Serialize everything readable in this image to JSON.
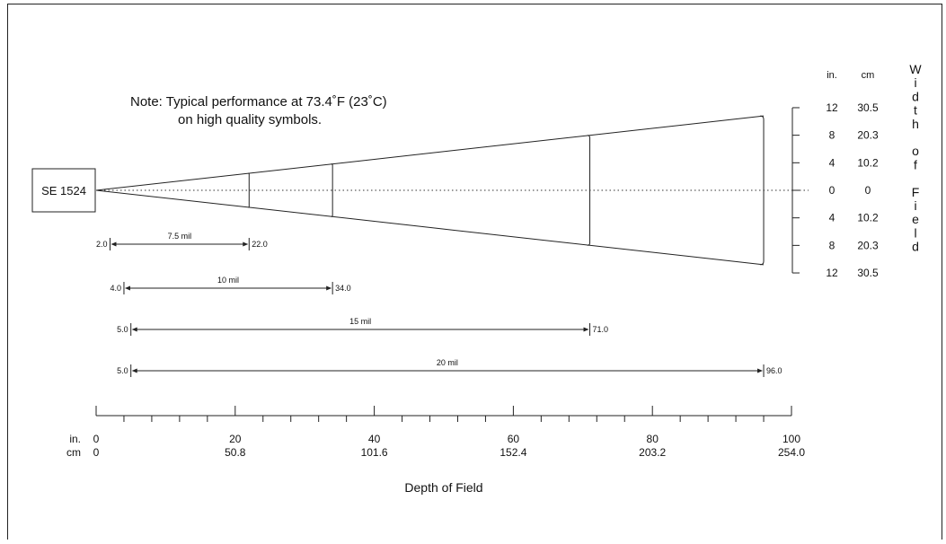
{
  "note": {
    "line1": "Note:  Typical performance at 73.4˚F (23˚C)",
    "line2": "on high quality symbols."
  },
  "scanner": {
    "label": "SE 1524"
  },
  "depth_axis": {
    "title": "Depth of Field",
    "unit_in": "in.",
    "unit_cm": "cm",
    "ticks": [
      {
        "in": "0",
        "cm": "0",
        "value": 0
      },
      {
        "in": "20",
        "cm": "50.8",
        "value": 20
      },
      {
        "in": "40",
        "cm": "101.6",
        "value": 40
      },
      {
        "in": "60",
        "cm": "152.4",
        "value": 60
      },
      {
        "in": "80",
        "cm": "203.2",
        "value": 80
      },
      {
        "in": "100",
        "cm": "254.0",
        "value": 100
      }
    ],
    "max": 100,
    "minor_step": 4
  },
  "width_axis": {
    "title_letters": [
      "W",
      "i",
      "d",
      "t",
      "h",
      "",
      "o",
      "f",
      "",
      "F",
      "i",
      "e",
      "l",
      "d"
    ],
    "unit_in": "in.",
    "unit_cm": "cm",
    "rows": [
      {
        "in": "12",
        "cm": "30.5",
        "value": 12
      },
      {
        "in": "8",
        "cm": "20.3",
        "value": 8
      },
      {
        "in": "4",
        "cm": "10.2",
        "value": 4
      },
      {
        "in": "0",
        "cm": "0",
        "value": 0
      },
      {
        "in": "4",
        "cm": "10.2",
        "value": -4
      },
      {
        "in": "8",
        "cm": "20.3",
        "value": -8
      },
      {
        "in": "12",
        "cm": "30.5",
        "value": -12
      }
    ],
    "max": 12
  },
  "ranges": [
    {
      "label": "7.5 mil",
      "start": 2.0,
      "end": 22.0,
      "start_label": "2.0",
      "end_label": "22.0"
    },
    {
      "label": "10 mil",
      "start": 4.0,
      "end": 34.0,
      "start_label": "4.0",
      "end_label": "34.0"
    },
    {
      "label": "15 mil",
      "start": 5.0,
      "end": 71.0,
      "start_label": "5.0",
      "end_label": "71.0"
    },
    {
      "label": "20 mil",
      "start": 5.0,
      "end": 96.0,
      "start_label": "5.0",
      "end_label": "96.0"
    }
  ],
  "beam": {
    "apex_in": 0,
    "end_in": 96,
    "end_half_width": 10.8,
    "arc_depths": [
      22,
      34,
      71,
      96
    ]
  }
}
